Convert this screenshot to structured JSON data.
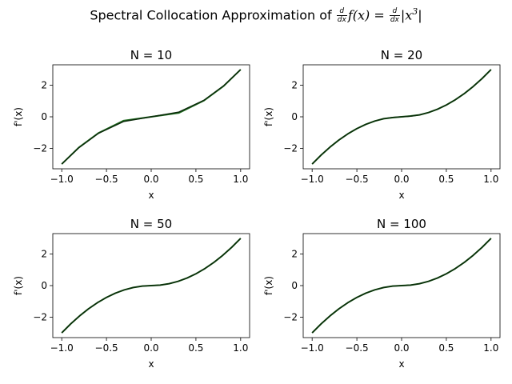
{
  "suptitle": {
    "prefix": "Spectral Collocation Approximation of ",
    "frac1_num": "d",
    "frac1_den": "dx",
    "mid": "f(x) = ",
    "frac2_num": "d",
    "frac2_den": "dx",
    "expr": "|x",
    "exp": "3",
    "close": "|"
  },
  "colors": {
    "exact": "#1f6b1f",
    "approx": "#0a2a0a"
  },
  "chart_data": [
    {
      "type": "line",
      "title": "N = 10",
      "xlabel": "x",
      "ylabel": "f'(x)",
      "xlim": [
        -1.1,
        1.1
      ],
      "ylim": [
        -3.3,
        3.3
      ],
      "xticks": [
        "-1.0",
        "-0.5",
        "0.0",
        "0.5",
        "1.0"
      ],
      "yticks": [
        "-2",
        "0",
        "2"
      ],
      "series": [
        {
          "x": [
            -1.0,
            -0.81,
            -0.59,
            -0.31,
            0.0,
            0.31,
            0.59,
            0.81,
            1.0
          ],
          "y": [
            -3.0,
            -1.95,
            -1.03,
            -0.25,
            0.0,
            0.25,
            1.03,
            1.95,
            3.0
          ]
        },
        {
          "x": [
            -1.0,
            -0.81,
            -0.59,
            -0.31,
            0.0,
            0.31,
            0.59,
            0.81,
            1.0
          ],
          "y": [
            -3.0,
            -1.97,
            -1.05,
            -0.3,
            0.0,
            0.3,
            1.05,
            1.97,
            3.0
          ]
        }
      ]
    },
    {
      "type": "line",
      "title": "N = 20",
      "xlabel": "x",
      "ylabel": "f'(x)",
      "xlim": [
        -1.1,
        1.1
      ],
      "ylim": [
        -3.3,
        3.3
      ],
      "xticks": [
        "-1.0",
        "-0.5",
        "0.0",
        "0.5",
        "1.0"
      ],
      "yticks": [
        "-2",
        "0",
        "2"
      ],
      "series": [
        {
          "x": [
            -1.0,
            -0.9,
            -0.8,
            -0.7,
            -0.6,
            -0.5,
            -0.4,
            -0.3,
            -0.2,
            -0.1,
            0.0,
            0.1,
            0.2,
            0.3,
            0.4,
            0.5,
            0.6,
            0.7,
            0.8,
            0.9,
            1.0
          ],
          "y": [
            -3.0,
            -2.43,
            -1.92,
            -1.47,
            -1.08,
            -0.75,
            -0.48,
            -0.27,
            -0.12,
            -0.05,
            0.0,
            0.05,
            0.12,
            0.27,
            0.48,
            0.75,
            1.08,
            1.47,
            1.92,
            2.43,
            3.0
          ]
        },
        {
          "x": [
            -1.0,
            -0.9,
            -0.8,
            -0.7,
            -0.6,
            -0.5,
            -0.4,
            -0.3,
            -0.2,
            -0.1,
            0.0,
            0.1,
            0.2,
            0.3,
            0.4,
            0.5,
            0.6,
            0.7,
            0.8,
            0.9,
            1.0
          ],
          "y": [
            -3.0,
            -2.43,
            -1.92,
            -1.47,
            -1.08,
            -0.75,
            -0.48,
            -0.27,
            -0.12,
            -0.04,
            0.0,
            0.04,
            0.12,
            0.27,
            0.48,
            0.75,
            1.08,
            1.47,
            1.92,
            2.43,
            3.0
          ]
        }
      ]
    },
    {
      "type": "line",
      "title": "N = 50",
      "xlabel": "x",
      "ylabel": "f'(x)",
      "xlim": [
        -1.1,
        1.1
      ],
      "ylim": [
        -3.3,
        3.3
      ],
      "xticks": [
        "-1.0",
        "-0.5",
        "0.0",
        "0.5",
        "1.0"
      ],
      "yticks": [
        "-2",
        "0",
        "2"
      ],
      "series": [
        {
          "x": [
            -1.0,
            -0.9,
            -0.8,
            -0.7,
            -0.6,
            -0.5,
            -0.4,
            -0.3,
            -0.2,
            -0.1,
            0.0,
            0.1,
            0.2,
            0.3,
            0.4,
            0.5,
            0.6,
            0.7,
            0.8,
            0.9,
            1.0
          ],
          "y": [
            -3.0,
            -2.43,
            -1.92,
            -1.47,
            -1.08,
            -0.75,
            -0.48,
            -0.27,
            -0.12,
            -0.03,
            0.0,
            0.03,
            0.12,
            0.27,
            0.48,
            0.75,
            1.08,
            1.47,
            1.92,
            2.43,
            3.0
          ]
        },
        {
          "x": [
            -1.0,
            -0.9,
            -0.8,
            -0.7,
            -0.6,
            -0.5,
            -0.4,
            -0.3,
            -0.2,
            -0.1,
            0.0,
            0.1,
            0.2,
            0.3,
            0.4,
            0.5,
            0.6,
            0.7,
            0.8,
            0.9,
            1.0
          ],
          "y": [
            -3.0,
            -2.43,
            -1.92,
            -1.47,
            -1.08,
            -0.75,
            -0.48,
            -0.27,
            -0.12,
            -0.03,
            0.0,
            0.03,
            0.12,
            0.27,
            0.48,
            0.75,
            1.08,
            1.47,
            1.92,
            2.43,
            3.0
          ]
        }
      ]
    },
    {
      "type": "line",
      "title": "N = 100",
      "xlabel": "x",
      "ylabel": "f'(x)",
      "xlim": [
        -1.1,
        1.1
      ],
      "ylim": [
        -3.3,
        3.3
      ],
      "xticks": [
        "-1.0",
        "-0.5",
        "0.0",
        "0.5",
        "1.0"
      ],
      "yticks": [
        "-2",
        "0",
        "2"
      ],
      "series": [
        {
          "x": [
            -1.0,
            -0.9,
            -0.8,
            -0.7,
            -0.6,
            -0.5,
            -0.4,
            -0.3,
            -0.2,
            -0.1,
            0.0,
            0.1,
            0.2,
            0.3,
            0.4,
            0.5,
            0.6,
            0.7,
            0.8,
            0.9,
            1.0
          ],
          "y": [
            -3.0,
            -2.43,
            -1.92,
            -1.47,
            -1.08,
            -0.75,
            -0.48,
            -0.27,
            -0.12,
            -0.03,
            0.0,
            0.03,
            0.12,
            0.27,
            0.48,
            0.75,
            1.08,
            1.47,
            1.92,
            2.43,
            3.0
          ]
        },
        {
          "x": [
            -1.0,
            -0.9,
            -0.8,
            -0.7,
            -0.6,
            -0.5,
            -0.4,
            -0.3,
            -0.2,
            -0.1,
            0.0,
            0.1,
            0.2,
            0.3,
            0.4,
            0.5,
            0.6,
            0.7,
            0.8,
            0.9,
            1.0
          ],
          "y": [
            -3.0,
            -2.43,
            -1.92,
            -1.47,
            -1.08,
            -0.75,
            -0.48,
            -0.27,
            -0.12,
            -0.03,
            0.0,
            0.03,
            0.12,
            0.27,
            0.48,
            0.75,
            1.08,
            1.47,
            1.92,
            2.43,
            3.0
          ]
        }
      ]
    }
  ]
}
